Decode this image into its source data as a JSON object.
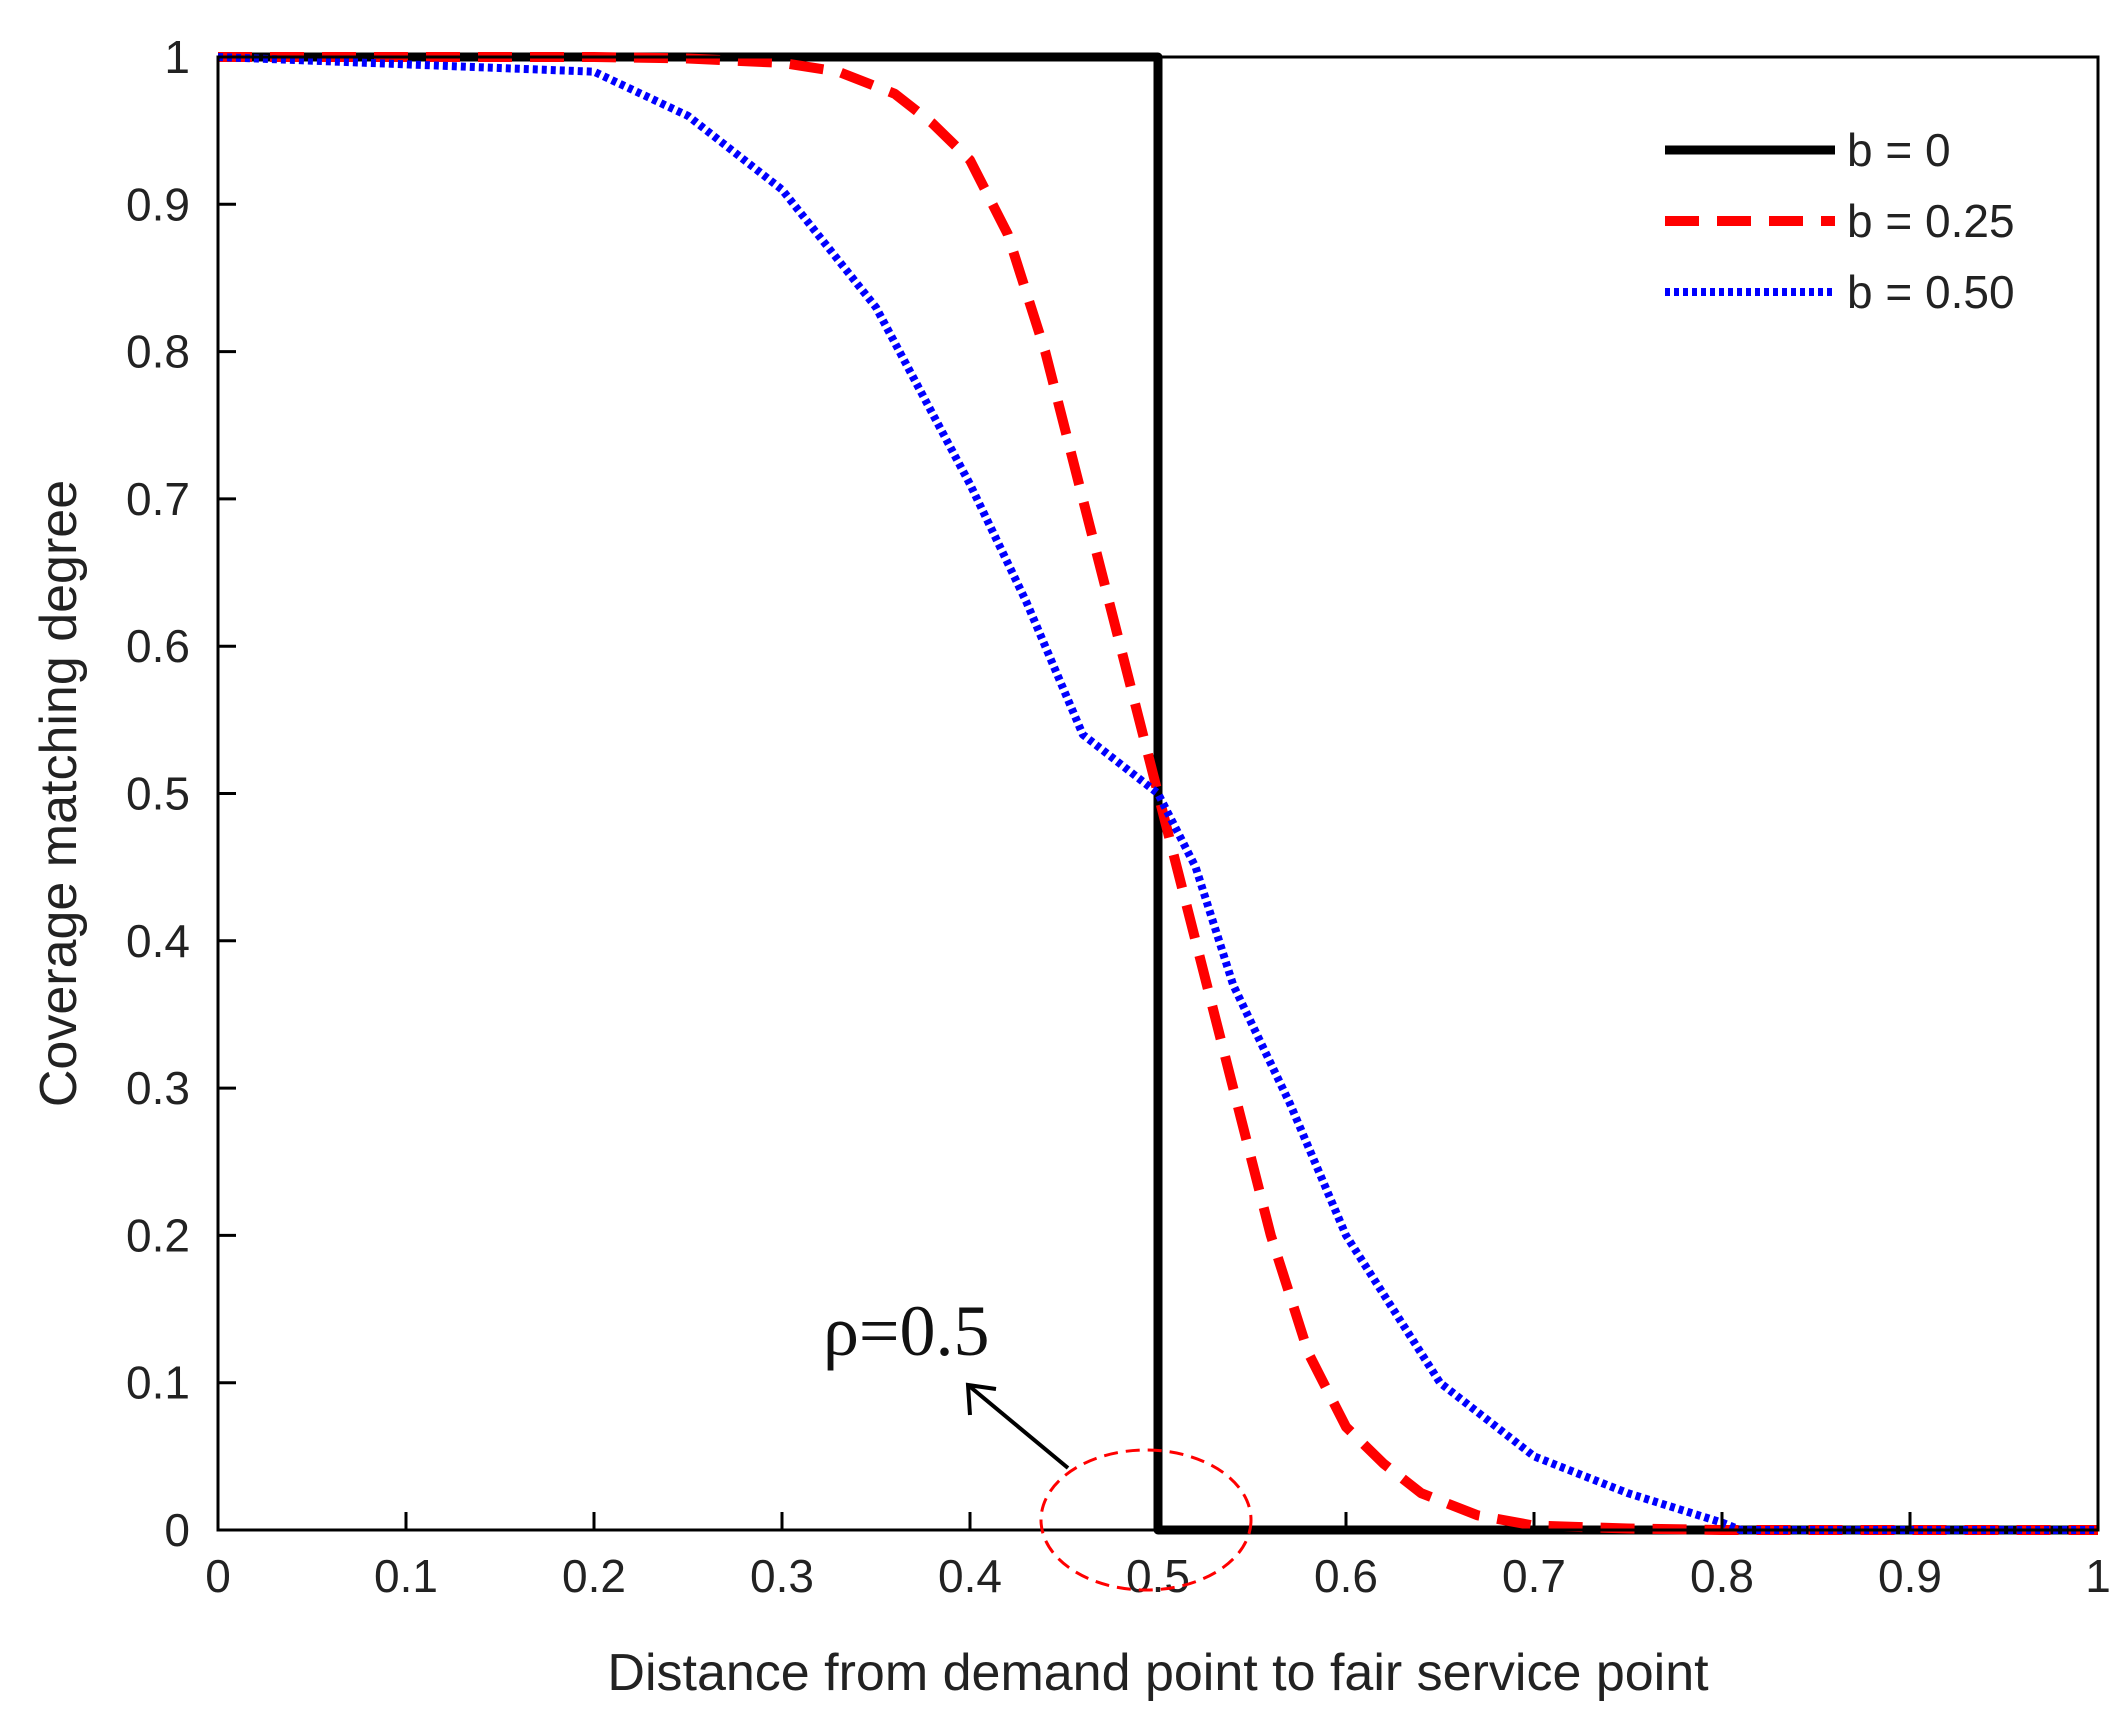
{
  "chart_data": {
    "type": "line",
    "title": "",
    "xlabel": "Distance from demand point to fair service point",
    "ylabel": "Coverage matching degree",
    "xlim": [
      0,
      1
    ],
    "ylim": [
      0,
      1
    ],
    "grid": false,
    "legend_position": "top-right",
    "xticks": [
      0,
      0.1,
      0.2,
      0.3,
      0.4,
      0.5,
      0.6,
      0.7,
      0.8,
      0.9,
      1
    ],
    "xtick_labels": [
      "0",
      "0.1",
      "0.2",
      "0.3",
      "0.4",
      "0.5",
      "0.6",
      "0.7",
      "0.8",
      "0.9",
      "1"
    ],
    "yticks": [
      0,
      0.1,
      0.2,
      0.3,
      0.4,
      0.5,
      0.6,
      0.7,
      0.8,
      0.9,
      1
    ],
    "ytick_labels": [
      "0",
      "0.1",
      "0.2",
      "0.3",
      "0.4",
      "0.5",
      "0.6",
      "0.7",
      "0.8",
      "0.9",
      "1"
    ],
    "series": [
      {
        "name": "b = 0",
        "color": "#000000",
        "style": "solid",
        "x": [
          0,
          0.5,
          0.5,
          1
        ],
        "y": [
          1,
          1,
          0,
          0
        ]
      },
      {
        "name": "b = 0.25",
        "color": "#ff0000",
        "style": "dashed",
        "x": [
          0,
          0.2,
          0.25,
          0.3,
          0.33,
          0.36,
          0.38,
          0.4,
          0.42,
          0.44,
          0.46,
          0.48,
          0.5,
          0.52,
          0.54,
          0.56,
          0.58,
          0.6,
          0.62,
          0.64,
          0.67,
          0.7,
          0.75,
          0.8,
          1
        ],
        "y": [
          1,
          1,
          0.999,
          0.996,
          0.99,
          0.975,
          0.955,
          0.93,
          0.88,
          0.8,
          0.7,
          0.6,
          0.5,
          0.4,
          0.3,
          0.2,
          0.12,
          0.07,
          0.045,
          0.025,
          0.01,
          0.003,
          0.001,
          0,
          0
        ]
      },
      {
        "name": "b = 0.50",
        "color": "#0000ff",
        "style": "dotted",
        "x": [
          0,
          0.2,
          0.25,
          0.3,
          0.35,
          0.4,
          0.43,
          0.46,
          0.48,
          0.5,
          0.52,
          0.54,
          0.57,
          0.6,
          0.65,
          0.7,
          0.75,
          0.8,
          0.81,
          1
        ],
        "y": [
          1,
          0.99,
          0.96,
          0.91,
          0.83,
          0.71,
          0.63,
          0.54,
          0.52,
          0.5,
          0.45,
          0.37,
          0.29,
          0.2,
          0.1,
          0.05,
          0.025,
          0.005,
          0,
          0
        ]
      }
    ],
    "annotations": [
      {
        "text": "ρ=0.5",
        "x": 0.5,
        "y": 0,
        "shape": "dashed-ellipse",
        "color": "#ff0000"
      }
    ]
  }
}
